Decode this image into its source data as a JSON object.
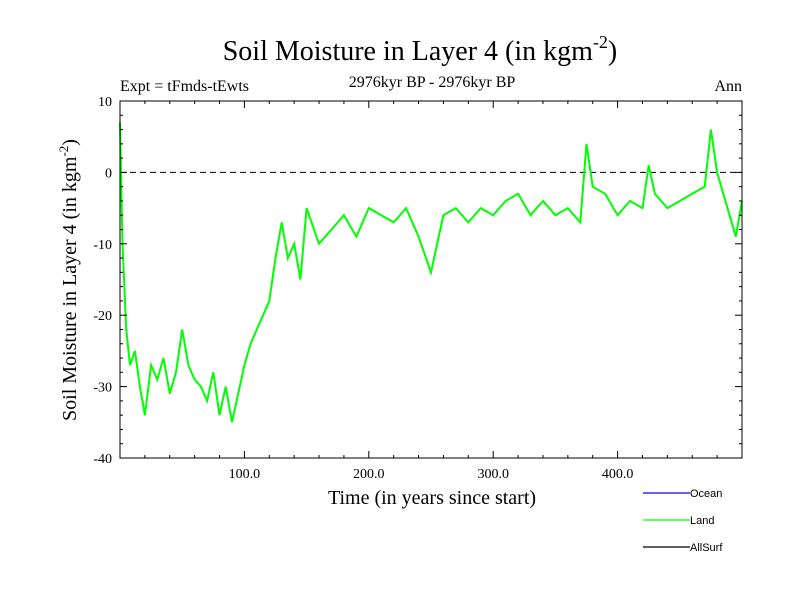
{
  "chart_data": {
    "type": "line",
    "title": "Soil Moisture in Layer 4 (in kgm",
    "title_sup": "-2",
    "title_close": ")",
    "subtitle_left": "Expt = tFmds-tEwts",
    "subtitle_center": "2976kyr BP - 2976kyr BP",
    "subtitle_right": "Ann",
    "xlabel": "Time (in years since start)",
    "ylabel": "Soil Moisture in Layer 4 (in kgm",
    "ylabel_sup": "-2",
    "ylabel_close": ")",
    "xlim": [
      0,
      500
    ],
    "ylim": [
      -40,
      10
    ],
    "x_ticks": [
      100,
      200,
      300,
      400
    ],
    "x_tick_labels": [
      "100.0",
      "200.0",
      "300.0",
      "400.0"
    ],
    "y_ticks": [
      -40,
      -30,
      -20,
      -10,
      0,
      10
    ],
    "y_tick_labels": [
      "-40",
      "-30",
      "-20",
      "-10",
      "0",
      "10"
    ],
    "reference_line": 0,
    "legend": [
      {
        "name": "Ocean",
        "color": "#0000ff"
      },
      {
        "name": "Land",
        "color": "#00ff00"
      },
      {
        "name": "AllSurf",
        "color": "#000000"
      }
    ],
    "series": [
      {
        "name": "Land",
        "color": "#00ff00",
        "x": [
          0,
          2,
          5,
          8,
          12,
          16,
          20,
          25,
          30,
          35,
          40,
          45,
          50,
          55,
          60,
          65,
          70,
          75,
          80,
          85,
          90,
          95,
          100,
          105,
          110,
          115,
          120,
          125,
          130,
          135,
          140,
          145,
          150,
          160,
          170,
          180,
          190,
          200,
          210,
          220,
          230,
          240,
          250,
          260,
          270,
          280,
          290,
          300,
          310,
          320,
          330,
          340,
          350,
          360,
          370,
          375,
          380,
          390,
          400,
          410,
          420,
          425,
          430,
          440,
          450,
          460,
          470,
          475,
          480,
          485,
          490,
          495,
          500
        ],
        "values": [
          7,
          -10,
          -22,
          -27,
          -25,
          -30,
          -34,
          -27,
          -29,
          -26,
          -31,
          -28,
          -22,
          -27,
          -29,
          -30,
          -32,
          -28,
          -34,
          -30,
          -35,
          -31,
          -27,
          -24,
          -22,
          -20,
          -18,
          -12,
          -7,
          -12,
          -10,
          -15,
          -5,
          -10,
          -8,
          -6,
          -9,
          -5,
          -6,
          -7,
          -5,
          -9,
          -14,
          -6,
          -5,
          -7,
          -5,
          -6,
          -4,
          -3,
          -6,
          -4,
          -6,
          -5,
          -7,
          4,
          -2,
          -3,
          -6,
          -4,
          -5,
          1,
          -3,
          -5,
          -4,
          -3,
          -2,
          6,
          0,
          -3,
          -6,
          -9,
          -4
        ]
      }
    ]
  }
}
